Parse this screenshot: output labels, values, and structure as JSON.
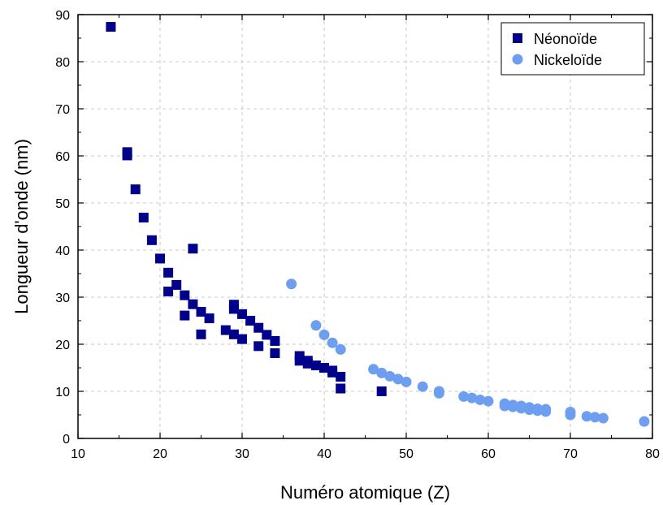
{
  "chart_data": {
    "type": "scatter",
    "title": "",
    "xlabel": "Numéro atomique (Z)",
    "ylabel": "Longueur d'onde (nm)",
    "xlim": [
      10,
      80
    ],
    "ylim": [
      0,
      90
    ],
    "xticks": [
      10,
      20,
      30,
      40,
      50,
      60,
      70,
      80
    ],
    "yticks": [
      0,
      10,
      20,
      30,
      40,
      50,
      60,
      70,
      80,
      90
    ],
    "grid": true,
    "legend_position": "top-right",
    "series": [
      {
        "name": "Néonoïde",
        "marker": "square",
        "color": "#00008b",
        "points": [
          [
            14,
            87.4
          ],
          [
            16,
            60.8
          ],
          [
            16,
            60.1
          ],
          [
            17,
            52.9
          ],
          [
            18,
            46.9
          ],
          [
            19,
            42.1
          ],
          [
            20,
            38.2
          ],
          [
            21,
            35.2
          ],
          [
            21,
            31.2
          ],
          [
            22,
            32.6
          ],
          [
            23,
            30.4
          ],
          [
            23,
            26.1
          ],
          [
            24,
            28.5
          ],
          [
            24,
            40.3
          ],
          [
            25,
            26.9
          ],
          [
            25,
            22.1
          ],
          [
            26,
            25.5
          ],
          [
            28,
            23.0
          ],
          [
            29,
            28.4
          ],
          [
            29,
            27.5
          ],
          [
            29,
            22.1
          ],
          [
            30,
            26.4
          ],
          [
            30,
            21.1
          ],
          [
            31,
            25.0
          ],
          [
            32,
            23.5
          ],
          [
            32,
            19.6
          ],
          [
            33,
            22.0
          ],
          [
            34,
            20.7
          ],
          [
            34,
            18.1
          ],
          [
            37,
            17.5
          ],
          [
            37,
            16.5
          ],
          [
            38,
            16.5
          ],
          [
            38,
            15.9
          ],
          [
            39,
            15.5
          ],
          [
            40,
            15.0
          ],
          [
            41,
            14.4
          ],
          [
            41,
            14.0
          ],
          [
            42,
            13.1
          ],
          [
            42,
            10.6
          ],
          [
            47,
            10.0
          ]
        ]
      },
      {
        "name": "Nickeloïde",
        "marker": "circle",
        "color": "#6e9ef0",
        "points": [
          [
            36,
            32.8
          ],
          [
            39,
            24.0
          ],
          [
            40,
            22.0
          ],
          [
            41,
            20.3
          ],
          [
            42,
            18.9
          ],
          [
            46,
            14.7
          ],
          [
            47,
            13.9
          ],
          [
            48,
            13.2
          ],
          [
            49,
            12.6
          ],
          [
            50,
            12.0
          ],
          [
            52,
            11.0
          ],
          [
            54,
            10.0
          ],
          [
            54,
            9.6
          ],
          [
            57,
            8.9
          ],
          [
            58,
            8.6
          ],
          [
            59,
            8.2
          ],
          [
            60,
            7.9
          ],
          [
            62,
            7.4
          ],
          [
            62,
            6.9
          ],
          [
            63,
            7.1
          ],
          [
            63,
            6.7
          ],
          [
            64,
            6.9
          ],
          [
            64,
            6.4
          ],
          [
            65,
            6.6
          ],
          [
            65,
            6.1
          ],
          [
            66,
            6.3
          ],
          [
            66,
            5.9
          ],
          [
            67,
            6.2
          ],
          [
            67,
            5.7
          ],
          [
            70,
            5.6
          ],
          [
            70,
            5.0
          ],
          [
            72,
            4.7
          ],
          [
            73,
            4.5
          ],
          [
            74,
            4.3
          ],
          [
            79,
            3.6
          ]
        ]
      }
    ]
  }
}
